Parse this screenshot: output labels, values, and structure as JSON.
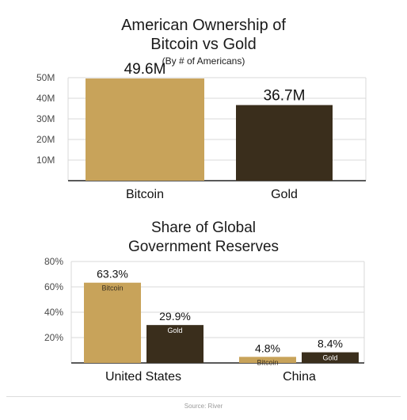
{
  "colors": {
    "bitcoin": "#C8A35A",
    "gold": "#3A2E1C",
    "axis": "#222222",
    "grid": "#d9d9d9"
  },
  "chart_data": [
    {
      "type": "bar",
      "title": "American Ownership of Bitcoin vs Gold",
      "title_lines": [
        "American Ownership of",
        "Bitcoin vs Gold"
      ],
      "subtitle": "(By # of Americans)",
      "categories": [
        "Bitcoin",
        "Gold"
      ],
      "values": [
        49.6,
        36.7
      ],
      "value_labels": [
        "49.6M",
        "36.7M"
      ],
      "yticks": [
        "10M",
        "20M",
        "30M",
        "40M",
        "50M"
      ],
      "ylim": [
        0,
        50
      ],
      "grid": true
    },
    {
      "type": "bar",
      "title": "Share of Global Government Reserves",
      "title_lines": [
        "Share of Global",
        "Government Reserves"
      ],
      "categories": [
        "United States",
        "China"
      ],
      "series": [
        {
          "name": "Bitcoin",
          "values": [
            63.3,
            4.8
          ],
          "value_labels": [
            "63.3%",
            "4.8%"
          ]
        },
        {
          "name": "Gold",
          "values": [
            29.9,
            8.4
          ],
          "value_labels": [
            "29.9%",
            "8.4%"
          ]
        }
      ],
      "yticks": [
        "20%",
        "40%",
        "60%",
        "80%"
      ],
      "ylim": [
        0,
        80
      ],
      "grid": true
    }
  ],
  "source": "Source: River"
}
